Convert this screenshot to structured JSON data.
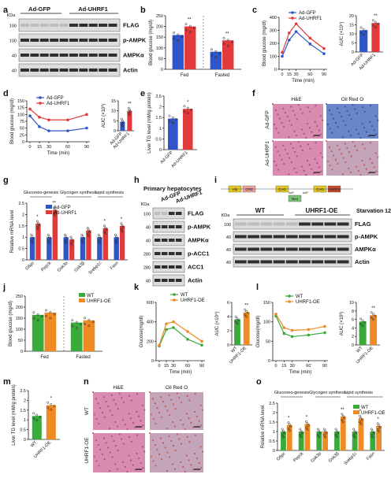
{
  "panel_letters": [
    "a",
    "b",
    "c",
    "d",
    "e",
    "f",
    "g",
    "h",
    "i",
    "j",
    "k",
    "l",
    "m",
    "n",
    "o"
  ],
  "blot_a": {
    "kda": "KDa",
    "mw": [
      "100",
      "100",
      "40",
      "40"
    ],
    "groups": [
      "Ad-GFP",
      "Ad-UHRF1"
    ],
    "bands": [
      "FLAG",
      "p-AMPK",
      "AMPKα",
      "Actin"
    ]
  },
  "blot_h": {
    "title": "Primary hepatocytes",
    "kda": "KDa",
    "groups": [
      "Ad-GFP",
      "Ad-UHRF1"
    ],
    "mw": [
      "100",
      "40",
      "40",
      "280",
      "280",
      "40"
    ],
    "bands": [
      "FLAG",
      "p-AMPK",
      "AMPKα",
      "p-ACC1",
      "ACC1",
      "Actin"
    ]
  },
  "blot_i": {
    "kda": "KDa",
    "groups": [
      "WT",
      "UHRF1-OE"
    ],
    "condition": "Starvation 12h",
    "mw": [
      "100",
      "40",
      "40",
      "40"
    ],
    "bands": [
      "FLAG",
      "p-AMPK",
      "AMPKα",
      "Actin"
    ],
    "construct": [
      "Alb",
      "CRE",
      "CAG",
      "CAG",
      "UHRF1",
      "loxP",
      "loxP",
      "Neo"
    ]
  },
  "micro_f": {
    "col_titles": [
      "H&E",
      "Oil Red O"
    ],
    "row_labels": [
      "Ad-GFP",
      "Ad-UHRF1"
    ]
  },
  "micro_n": {
    "col_titles": [
      "H&E",
      "Oil Red O"
    ],
    "row_labels": [
      "WT",
      "UHRF1-OE"
    ]
  },
  "colors": {
    "control_blue": "#2f55c8",
    "treat_red": "#e23a3a",
    "wt_green": "#3aaa3a",
    "oe_orange": "#f08a24"
  },
  "chart_data": [
    {
      "panel": "b",
      "type": "bar",
      "ylabel": "Blood glucose (mg/dl)",
      "ylim": [
        0,
        250
      ],
      "ticks": [
        0,
        50,
        100,
        150,
        200,
        250
      ],
      "groups": [
        "Fed",
        "Fasted"
      ],
      "series": [
        {
          "name": "Ad-GFP",
          "values": [
            160,
            82
          ]
        },
        {
          "name": "Ad-UHRF1",
          "values": [
            200,
            135
          ]
        }
      ],
      "sig": [
        "**",
        "**"
      ]
    },
    {
      "panel": "c",
      "type": "line",
      "ylabel": "Blood glucose (mg/dl)",
      "xlabel": "Time (min)",
      "x": [
        0,
        15,
        30,
        60,
        90
      ],
      "ylim": [
        0,
        400
      ],
      "ticks": [
        0,
        100,
        200,
        300,
        400
      ],
      "series": [
        {
          "name": "Ad-GFP",
          "values": [
            100,
            225,
            290,
            195,
            120
          ]
        },
        {
          "name": "Ad-UHRF1",
          "values": [
            130,
            280,
            350,
            240,
            160
          ]
        }
      ]
    },
    {
      "panel": "c-auc",
      "type": "bar",
      "ylabel": "AUC (×10⁴)",
      "ylim": [
        0,
        20
      ],
      "ticks": [
        0,
        5,
        10,
        15,
        20
      ],
      "categories": [
        "Ad-GFP",
        "Ad-UHRF1"
      ],
      "values": [
        12,
        16
      ],
      "sig": "**"
    },
    {
      "panel": "d",
      "type": "line",
      "ylabel": "Blood glucose (mg/dl)",
      "xlabel": "Time (min)",
      "x": [
        0,
        15,
        30,
        60,
        90
      ],
      "ylim": [
        0,
        150
      ],
      "ticks": [
        0,
        25,
        50,
        75,
        100,
        125,
        150
      ],
      "series": [
        {
          "name": "Ad-GFP",
          "values": [
            95,
            55,
            40,
            40,
            50
          ]
        },
        {
          "name": "Ad-UHRF1",
          "values": [
            120,
            90,
            80,
            80,
            100
          ]
        }
      ]
    },
    {
      "panel": "d-auc",
      "type": "bar",
      "ylabel": "AUC (×10³)",
      "ylim": [
        0,
        15
      ],
      "ticks": [
        0,
        5,
        10,
        15
      ],
      "categories": [
        "Ad-GFP",
        "Ad-UHRF1"
      ],
      "values": [
        4.5,
        10
      ],
      "sig": "**"
    },
    {
      "panel": "e",
      "type": "bar",
      "ylabel": "Liver TG level (mM/g protein)",
      "ylim": [
        0,
        2.5
      ],
      "ticks": [
        0,
        0.5,
        1.0,
        1.5,
        2.0,
        2.5
      ],
      "categories": [
        "Ad-GFP",
        "Ad-UHRF1"
      ],
      "values": [
        1.45,
        1.9
      ],
      "sig": "*"
    },
    {
      "panel": "g",
      "type": "bar",
      "ylabel": "Relative mRNA level",
      "ylim": [
        0,
        2.5
      ],
      "ticks": [
        0,
        0.5,
        1.0,
        1.5,
        2.0,
        2.5
      ],
      "group_labels": [
        "Gluconeo-genesis",
        "Glycogen synthesis",
        "Lipid synthesis"
      ],
      "categories": [
        "G6pc",
        "Pepck",
        "Gsk3α",
        "Gsk3β",
        "Srebp1c",
        "Fasn"
      ],
      "series": [
        {
          "name": "Ad-GFP",
          "values": [
            1.0,
            1.0,
            1.0,
            1.0,
            1.0,
            1.0
          ]
        },
        {
          "name": "Ad-UHRF1",
          "values": [
            1.6,
            2.2,
            0.9,
            1.3,
            1.4,
            1.5
          ]
        }
      ],
      "sig": [
        "*",
        "**",
        "",
        "",
        "*",
        "*"
      ]
    },
    {
      "panel": "j",
      "type": "bar",
      "ylabel": "Blood glucose (mg/dl)",
      "ylim": [
        0,
        250
      ],
      "ticks": [
        0,
        50,
        100,
        150,
        200,
        250
      ],
      "groups": [
        "Fed",
        "Fasted"
      ],
      "series": [
        {
          "name": "WT",
          "values": [
            165,
            130
          ]
        },
        {
          "name": "UHRF1-OE",
          "values": [
            175,
            140
          ]
        }
      ]
    },
    {
      "panel": "k",
      "type": "line",
      "ylabel": "Glucose(mg/dl)",
      "xlabel": "Time (min)",
      "x": [
        0,
        15,
        30,
        60,
        90
      ],
      "ylim": [
        0,
        600
      ],
      "ticks": [
        0,
        200,
        400,
        600
      ],
      "series": [
        {
          "name": "WT",
          "values": [
            150,
            320,
            340,
            220,
            160
          ]
        },
        {
          "name": "UHRF1-OE",
          "values": [
            160,
            380,
            400,
            300,
            200
          ]
        }
      ]
    },
    {
      "panel": "k-auc",
      "type": "bar",
      "ylabel": "AUC (×10⁴)",
      "ylim": [
        0,
        6
      ],
      "ticks": [
        0,
        2,
        4,
        6
      ],
      "categories": [
        "WT",
        "UHRF1-OE"
      ],
      "values": [
        3.6,
        4.6
      ],
      "sig": "**"
    },
    {
      "panel": "l",
      "type": "line",
      "ylabel": "Glucose(mg/dl)",
      "xlabel": "Time (min)",
      "x": [
        0,
        15,
        30,
        60,
        90
      ],
      "ylim": [
        0,
        150
      ],
      "ticks": [
        0,
        50,
        100,
        150
      ],
      "series": [
        {
          "name": "WT",
          "values": [
            115,
            70,
            62,
            66,
            72
          ]
        },
        {
          "name": "UHRF1-OE",
          "values": [
            120,
            85,
            78,
            80,
            88
          ]
        }
      ]
    },
    {
      "panel": "l-auc",
      "type": "bar",
      "ylabel": "AUC (×10³)",
      "ylim": [
        0,
        10
      ],
      "ticks": [
        0,
        2,
        4,
        6,
        8,
        10
      ],
      "categories": [
        "WT",
        "UHRF1-OE"
      ],
      "values": [
        5.5,
        7
      ],
      "sig": "**"
    },
    {
      "panel": "m",
      "type": "bar",
      "ylabel": "Liver TG level (mM/g protein)",
      "ylim": [
        0,
        2.5
      ],
      "ticks": [
        0,
        0.5,
        1.0,
        1.5,
        2.0,
        2.5
      ],
      "categories": [
        "WT",
        "UHRF1-OE"
      ],
      "values": [
        1.2,
        1.75
      ],
      "sig": "*"
    },
    {
      "panel": "o",
      "type": "bar",
      "ylabel": "Relative mRNA level",
      "ylim": [
        0,
        2.5
      ],
      "ticks": [
        0,
        0.5,
        1.0,
        1.5,
        2.0,
        2.5
      ],
      "group_labels": [
        "Gluconeo-genesis",
        "Glycogen synthesis",
        "Lipid synthesis"
      ],
      "categories": [
        "G6pc",
        "Pepck",
        "Gsk3α",
        "Gsk3β",
        "Srebp1c",
        "Fasn"
      ],
      "series": [
        {
          "name": "WT",
          "values": [
            1.0,
            1.0,
            1.0,
            1.0,
            1.0,
            1.0
          ]
        },
        {
          "name": "UHRF1-OE",
          "values": [
            1.35,
            1.4,
            1.0,
            1.8,
            1.7,
            1.3
          ]
        }
      ],
      "sig": [
        "*",
        "*",
        "",
        "**",
        "*",
        "*"
      ]
    }
  ]
}
